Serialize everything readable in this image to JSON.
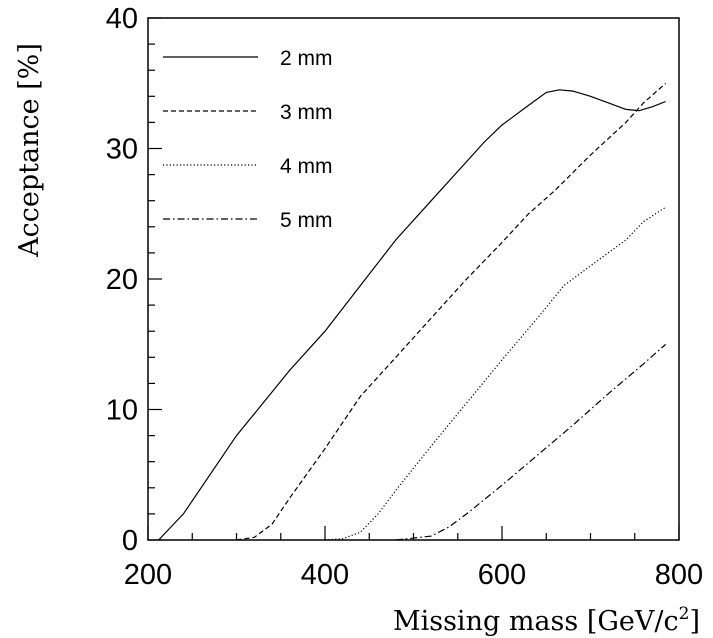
{
  "chart_data": {
    "type": "line",
    "title": "",
    "xlabel": "Missing mass [GeV/c",
    "xlabel_sup": "2",
    "xlabel_tail": "]",
    "ylabel": "Acceptance [%]",
    "xlim": [
      200,
      800
    ],
    "ylim": [
      0,
      40
    ],
    "xticks": [
      200,
      400,
      600,
      800
    ],
    "yticks": [
      0,
      10,
      20,
      30,
      40
    ],
    "grid": false,
    "legend_position": "top-left",
    "series": [
      {
        "name": "2 mm",
        "dash": "solid",
        "x": [
          212,
          240,
          270,
          300,
          330,
          360,
          400,
          440,
          480,
          520,
          560,
          580,
          600,
          630,
          650,
          665,
          680,
          700,
          720,
          740,
          755,
          770,
          785
        ],
        "y": [
          0,
          2,
          5,
          8,
          10.5,
          13,
          16,
          19.5,
          23,
          26,
          29,
          30.5,
          31.8,
          33.3,
          34.3,
          34.5,
          34.4,
          34,
          33.5,
          33,
          32.9,
          33.2,
          33.6
        ]
      },
      {
        "name": "3 mm",
        "dash": "dashed",
        "x": [
          300,
          320,
          340,
          360,
          400,
          440,
          480,
          520,
          560,
          600,
          630,
          660,
          700,
          740,
          760,
          785
        ],
        "y": [
          0,
          0.2,
          1.2,
          3.2,
          7,
          11,
          14,
          17,
          20,
          22.8,
          25,
          26.8,
          29.5,
          32,
          33.5,
          35
        ]
      },
      {
        "name": "4 mm",
        "dash": "dotted",
        "x": [
          400,
          420,
          440,
          460,
          480,
          520,
          560,
          600,
          640,
          670,
          700,
          740,
          760,
          785
        ],
        "y": [
          0,
          0.1,
          0.6,
          2,
          3.8,
          7.2,
          10.5,
          13.8,
          17,
          19.5,
          21,
          23,
          24.4,
          25.5
        ]
      },
      {
        "name": "5 mm",
        "dash": "dashdot",
        "x": [
          480,
          520,
          540,
          560,
          600,
          640,
          680,
          720,
          760,
          785
        ],
        "y": [
          0,
          0.3,
          1,
          2,
          4.2,
          6.5,
          8.8,
          11.2,
          13.5,
          15
        ]
      }
    ]
  }
}
